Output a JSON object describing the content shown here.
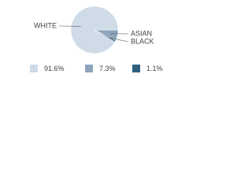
{
  "chart_data": {
    "type": "pie",
    "categories": [
      "WHITE",
      "ASIAN",
      "BLACK"
    ],
    "values": [
      91.6,
      7.3,
      1.1
    ],
    "value_labels": [
      "91.6%",
      "7.3%",
      "1.1%"
    ],
    "colors": [
      "#cfdce8",
      "#8ea6bd",
      "#2f5f7e"
    ]
  }
}
